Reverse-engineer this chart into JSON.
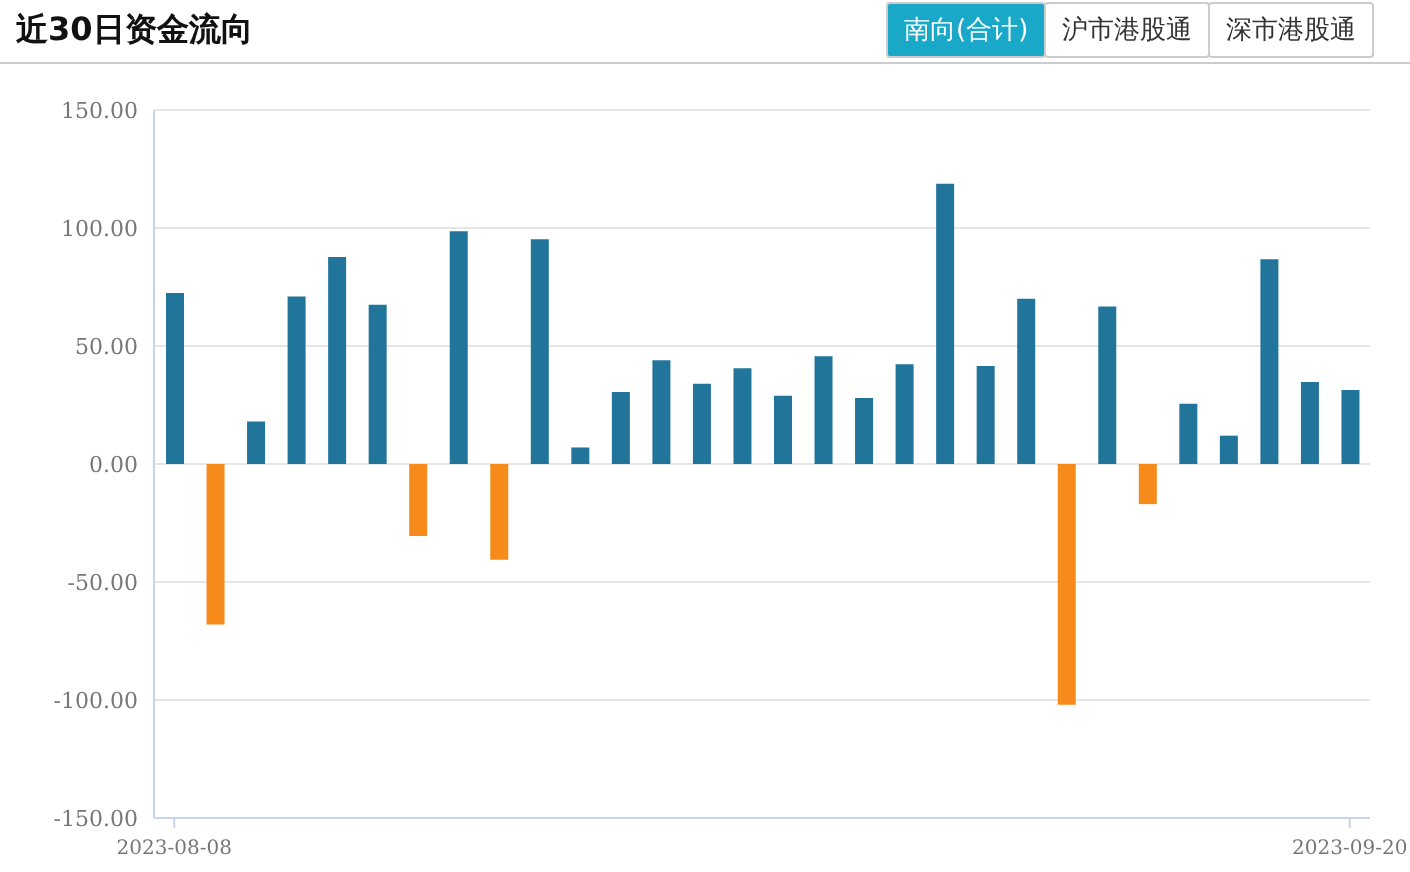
{
  "chart_data": {
    "type": "bar",
    "title": "近30日资金流向",
    "annotations": [
      "南向(合计)",
      "沪市港股通",
      "深市港股通"
    ],
    "categories": [
      "2023-08-08",
      null,
      null,
      null,
      null,
      null,
      null,
      null,
      null,
      null,
      null,
      null,
      null,
      null,
      null,
      null,
      null,
      null,
      null,
      null,
      null,
      null,
      null,
      null,
      null,
      null,
      null,
      null,
      null,
      "2023-09-20"
    ],
    "values": [
      72.5,
      -68,
      18,
      71,
      87.7,
      67.5,
      -30.5,
      98.6,
      -40.6,
      95.2,
      7,
      30.5,
      44,
      34,
      40.6,
      28.9,
      45.7,
      28,
      42.3,
      118.8,
      41.5,
      70,
      -102,
      66.7,
      -17,
      25.5,
      12,
      86.8,
      34.7,
      31.4
    ],
    "colors": [
      "#21759b",
      "#f68a1a",
      "#21759b",
      "#21759b",
      "#21759b",
      "#21759b",
      "#f68a1a",
      "#21759b",
      "#f68a1a",
      "#21759b",
      "#21759b",
      "#21759b",
      "#21759b",
      "#21759b",
      "#21759b",
      "#21759b",
      "#21759b",
      "#21759b",
      "#21759b",
      "#21759b",
      "#21759b",
      "#21759b",
      "#f68a1a",
      "#21759b",
      "#f68a1a",
      "#21759b",
      "#21759b",
      "#21759b",
      "#21759b",
      "#21759b"
    ],
    "ylim": [
      -150,
      150
    ],
    "yticks": [
      {
        "value": -150,
        "label": "-150.00"
      },
      {
        "value": -100,
        "label": "-100.00"
      },
      {
        "value": -50,
        "label": "-50.00"
      },
      {
        "value": 0,
        "label": "0.00"
      },
      {
        "value": 50,
        "label": "50.00"
      },
      {
        "value": 100,
        "label": "100.00"
      },
      {
        "value": 150,
        "label": "150.00"
      }
    ],
    "grid": "y",
    "legend": false
  }
}
